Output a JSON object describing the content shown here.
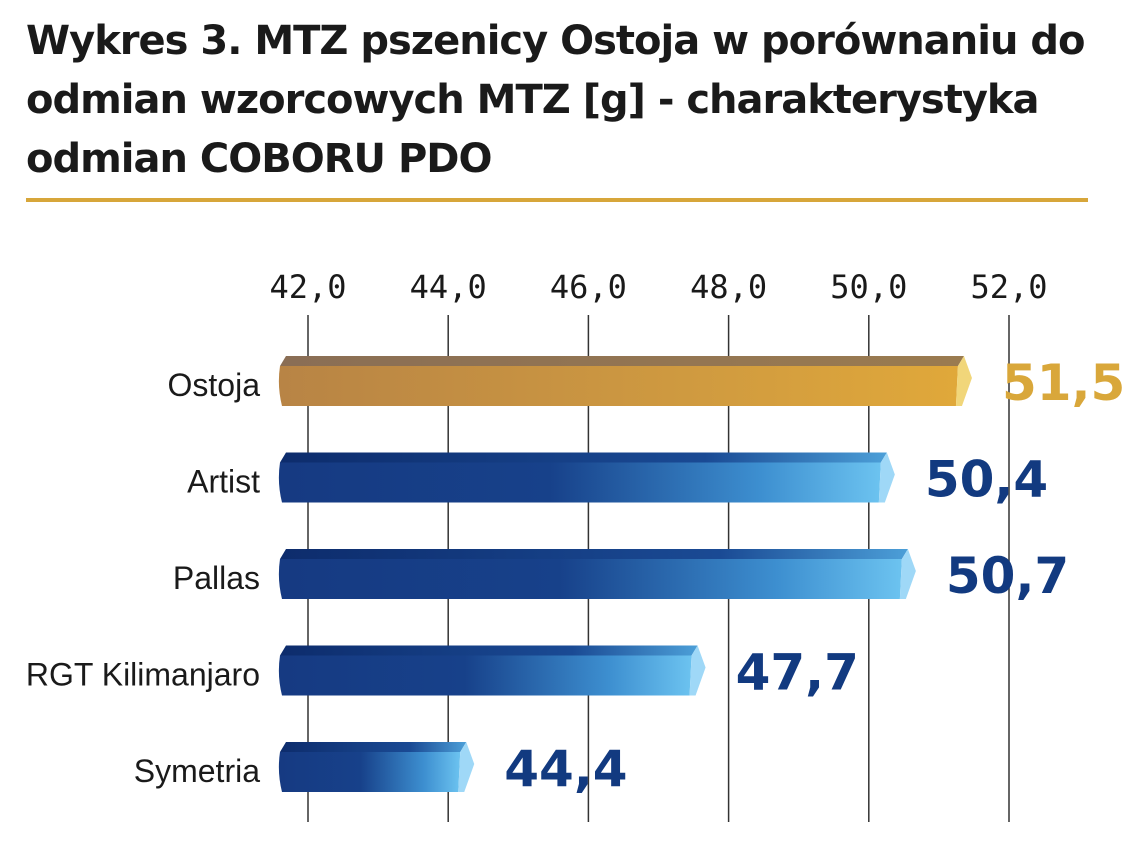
{
  "title": "Wykres 3. MTZ pszenicy Ostoja w porównaniu do odmian wzorcowych MTZ [g] - charakterystyka odmian COBORU PDO",
  "colors": {
    "accent_gold": "#d9a73a",
    "rule": "#d7a63a",
    "navy": "#123a80",
    "light_blue": "#6cc3f0",
    "highlight_dark": "#8a6e55",
    "grid": "#333333"
  },
  "chart_data": {
    "type": "bar",
    "orientation": "horizontal",
    "categories": [
      "Ostoja",
      "Artist",
      "Pallas",
      "RGT Kilimanjaro",
      "Symetria"
    ],
    "values": [
      51.5,
      50.4,
      50.7,
      47.7,
      44.4
    ],
    "value_labels": [
      "51,5",
      "50,4",
      "50,7",
      "47,7",
      "44,4"
    ],
    "highlight_index": 0,
    "xlim": [
      42.0,
      52.0
    ],
    "ticks": [
      42,
      44,
      46,
      48,
      50,
      52
    ],
    "tick_labels": [
      "42,0",
      "44,0",
      "46,0",
      "48,0",
      "50,0",
      "52,0"
    ],
    "grid": true,
    "axis_position": "top"
  }
}
